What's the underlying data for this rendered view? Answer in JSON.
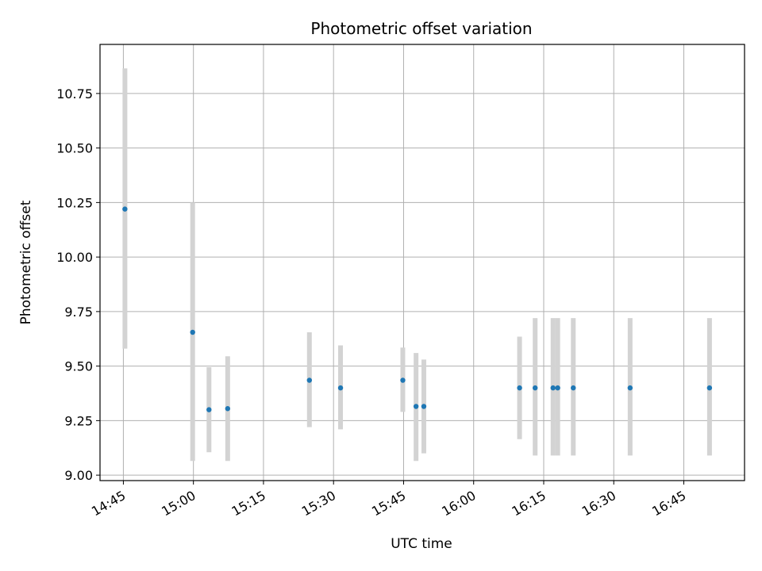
{
  "chart_data": {
    "type": "scatter",
    "title": "Photometric offset variation",
    "xlabel": "UTC time",
    "ylabel": "Photometric offset",
    "x_axis_kind": "time",
    "x_range": [
      "14:40",
      "16:58"
    ],
    "ylim": [
      8.975,
      10.975
    ],
    "grid": true,
    "x_ticks": [
      "14:45",
      "15:00",
      "15:15",
      "15:30",
      "15:45",
      "16:00",
      "16:15",
      "16:30",
      "16:45"
    ],
    "y_ticks": [
      "9.00",
      "9.25",
      "9.50",
      "9.75",
      "10.00",
      "10.25",
      "10.50",
      "10.75"
    ],
    "colors": {
      "point": "#1f77b4",
      "errorbar": "#d3d3d3",
      "grid": "#b0b0b0"
    },
    "points": [
      {
        "x": "14:45:20",
        "y": 10.22,
        "ymin": 9.58,
        "ymax": 10.865
      },
      {
        "x": "14:59:50",
        "y": 9.655,
        "ymin": 9.065,
        "ymax": 10.25
      },
      {
        "x": "15:03:20",
        "y": 9.3,
        "ymin": 9.105,
        "ymax": 9.495
      },
      {
        "x": "15:07:20",
        "y": 9.305,
        "ymin": 9.065,
        "ymax": 9.545
      },
      {
        "x": "15:24:50",
        "y": 9.435,
        "ymin": 9.22,
        "ymax": 9.655
      },
      {
        "x": "15:31:30",
        "y": 9.4,
        "ymin": 9.21,
        "ymax": 9.595
      },
      {
        "x": "15:44:50",
        "y": 9.435,
        "ymin": 9.29,
        "ymax": 9.585
      },
      {
        "x": "15:47:40",
        "y": 9.315,
        "ymin": 9.065,
        "ymax": 9.56
      },
      {
        "x": "15:49:20",
        "y": 9.315,
        "ymin": 9.1,
        "ymax": 9.53
      },
      {
        "x": "16:09:50",
        "y": 9.4,
        "ymin": 9.165,
        "ymax": 9.635
      },
      {
        "x": "16:13:10",
        "y": 9.4,
        "ymin": 9.09,
        "ymax": 9.72
      },
      {
        "x": "16:17:00",
        "y": 9.4,
        "ymin": 9.09,
        "ymax": 9.72
      },
      {
        "x": "16:18:00",
        "y": 9.4,
        "ymin": 9.09,
        "ymax": 9.72
      },
      {
        "x": "16:21:20",
        "y": 9.4,
        "ymin": 9.09,
        "ymax": 9.72
      },
      {
        "x": "16:33:30",
        "y": 9.4,
        "ymin": 9.09,
        "ymax": 9.72
      },
      {
        "x": "16:50:30",
        "y": 9.4,
        "ymin": 9.09,
        "ymax": 9.72
      }
    ]
  }
}
